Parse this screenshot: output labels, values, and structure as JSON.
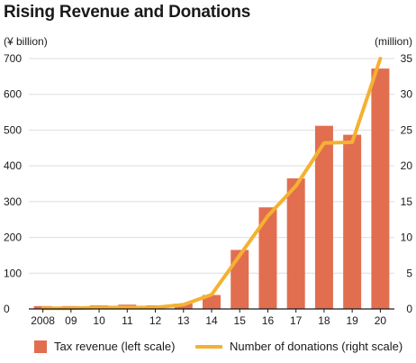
{
  "colors": {
    "bar": "#e26e50",
    "line": "#f5b131",
    "axis": "#1a1a1a",
    "grid": "#dddddd"
  },
  "chart_data": {
    "type": "bar",
    "title": "Rising Revenue and Donations",
    "categories": [
      "2008",
      "09",
      "10",
      "11",
      "12",
      "13",
      "14",
      "15",
      "16",
      "17",
      "18",
      "19",
      "20"
    ],
    "left_axis": {
      "unit_label": "(¥ billion)",
      "ylim": [
        0,
        700
      ],
      "ticks": [
        0,
        100,
        200,
        300,
        400,
        500,
        600,
        700
      ]
    },
    "right_axis": {
      "unit_label": "(million)",
      "ylim": [
        0,
        35
      ],
      "ticks": [
        0,
        5,
        10,
        15,
        20,
        25,
        30,
        35
      ]
    },
    "series": [
      {
        "name": "Tax revenue (left scale)",
        "type": "bar",
        "axis": "left",
        "values": [
          8,
          8,
          10,
          12,
          10,
          15,
          39,
          165,
          284,
          365,
          512,
          487,
          672
        ]
      },
      {
        "name": "Number of donations (right scale)",
        "type": "line",
        "axis": "right",
        "values": [
          0.1,
          0.1,
          0.2,
          0.2,
          0.2,
          0.6,
          2.0,
          7.5,
          13.0,
          17.2,
          23.2,
          23.3,
          35.0
        ]
      }
    ],
    "grid": true,
    "legend_position": "bottom"
  }
}
